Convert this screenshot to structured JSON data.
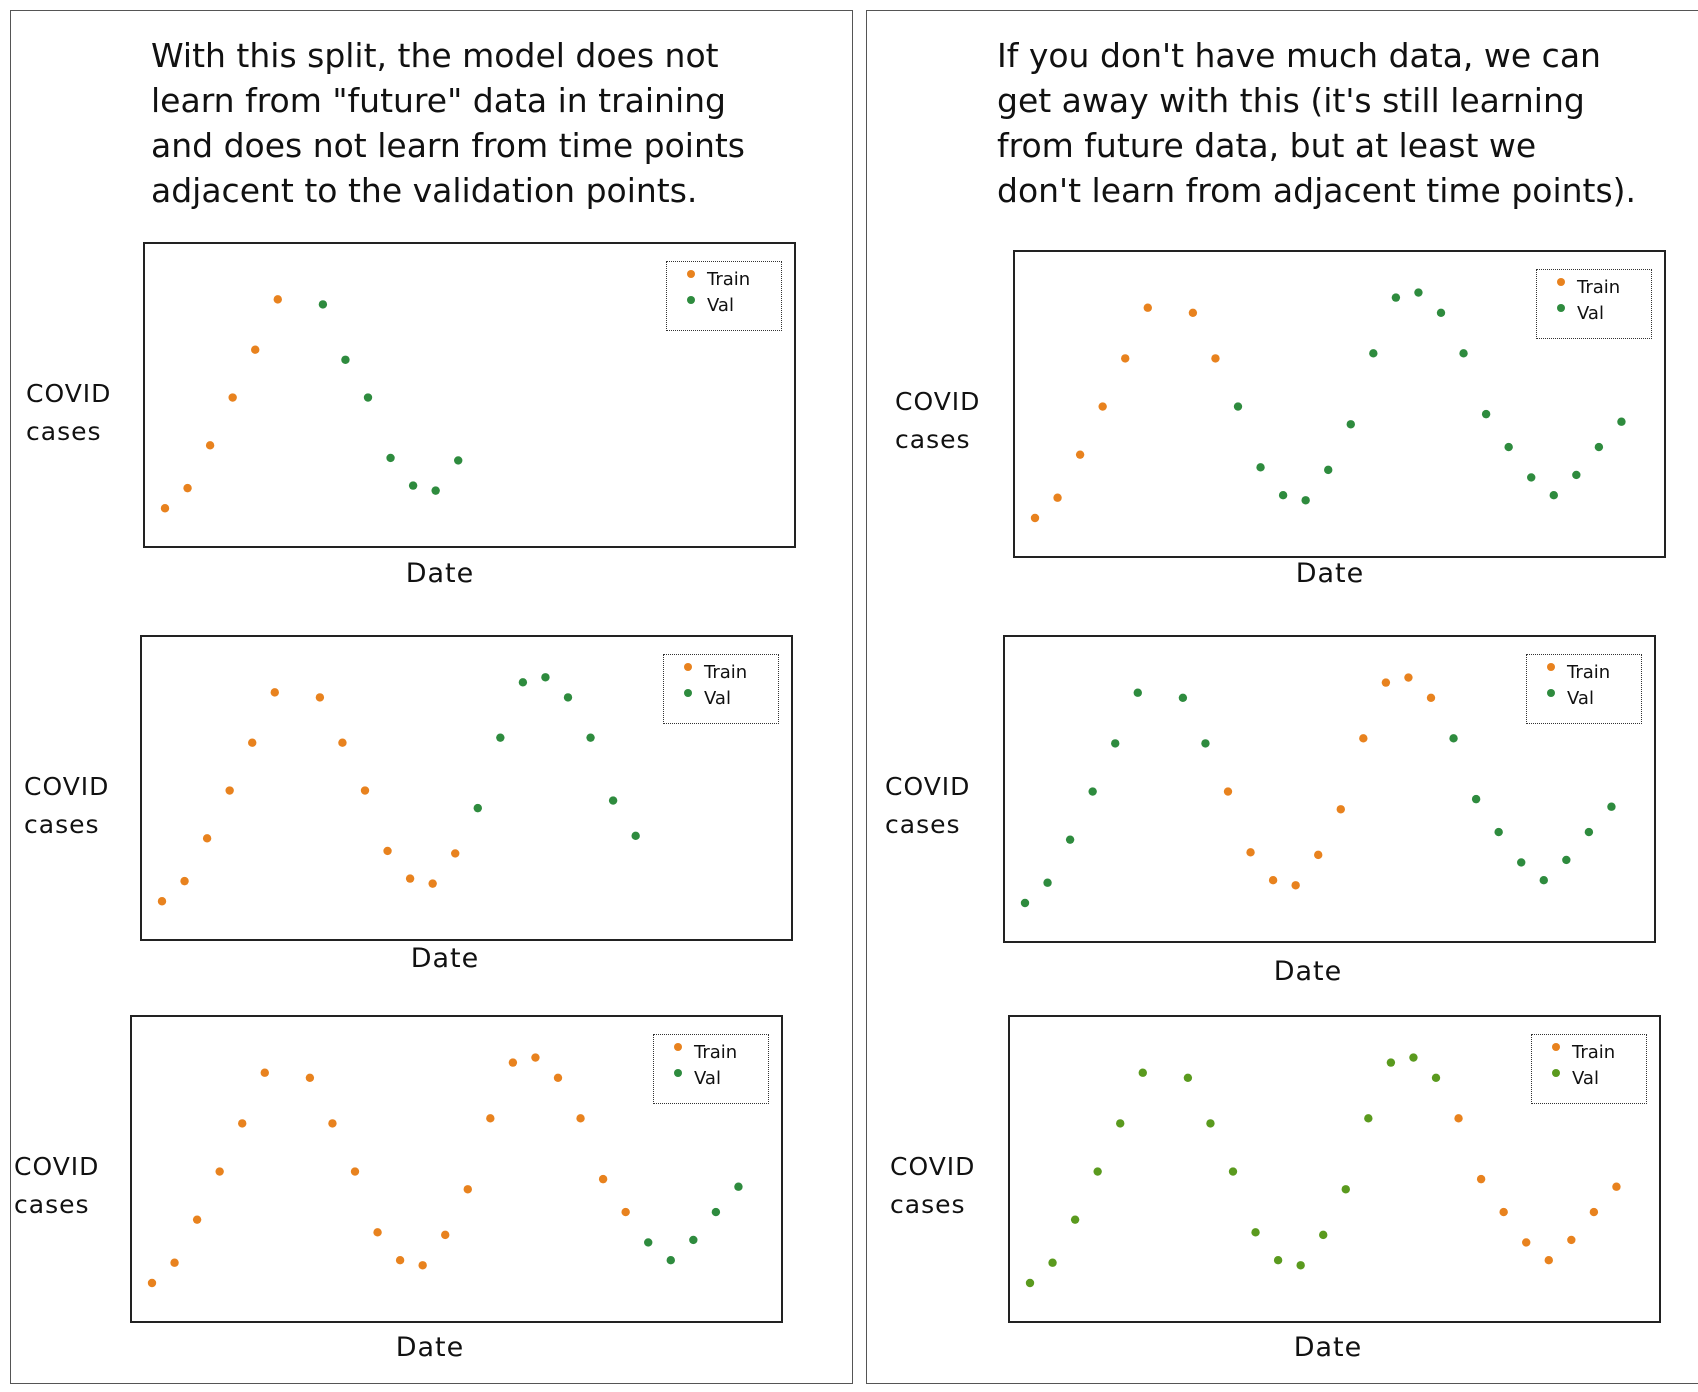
{
  "colors": {
    "train": "#e8821e",
    "val": "#2e8b3e",
    "val_alt": "#5a9a1e"
  },
  "left_panel": {
    "caption": [
      "With this split, the model does not",
      "learn from \"future\" data in training",
      "and does not learn from time points",
      "adjacent to the validation points."
    ]
  },
  "right_panel": {
    "caption": [
      "If you don't have much data, we can",
      "get away with this (it's still learning",
      "from future data, but at least we",
      "don't learn from adjacent time points)."
    ]
  },
  "chart_data": [
    {
      "type": "scatter",
      "panel": "left",
      "position": "top",
      "ylabel": [
        "COVID",
        "cases"
      ],
      "xlabel": "Date",
      "legend": [
        "Train",
        "Val"
      ],
      "legend_placement": "top-right",
      "train": [
        [
          0,
          2.5
        ],
        [
          1,
          3.3
        ],
        [
          2,
          5.0
        ],
        [
          3,
          6.9
        ],
        [
          4,
          8.8
        ],
        [
          5,
          10.8
        ]
      ],
      "val": [
        [
          7,
          10.6
        ],
        [
          8,
          8.4
        ],
        [
          9,
          6.9
        ],
        [
          10,
          4.5
        ],
        [
          11,
          3.4
        ],
        [
          12,
          3.2
        ],
        [
          13,
          4.4
        ]
      ]
    },
    {
      "type": "scatter",
      "panel": "left",
      "position": "middle",
      "ylabel": [
        "COVID",
        "cases"
      ],
      "xlabel": "Date",
      "legend": [
        "Train",
        "Val"
      ],
      "legend_placement": "top-right",
      "train": [
        [
          0,
          2.5
        ],
        [
          1,
          3.3
        ],
        [
          2,
          5.0
        ],
        [
          3,
          6.9
        ],
        [
          4,
          8.8
        ],
        [
          5,
          10.8
        ],
        [
          7,
          10.6
        ],
        [
          8,
          8.8
        ],
        [
          9,
          6.9
        ],
        [
          10,
          4.5
        ],
        [
          11,
          3.4
        ],
        [
          12,
          3.2
        ],
        [
          13,
          4.4
        ]
      ],
      "val": [
        [
          14,
          6.2
        ],
        [
          15,
          9.0
        ],
        [
          16,
          11.2
        ],
        [
          17,
          11.4
        ],
        [
          18,
          10.6
        ],
        [
          19,
          9.0
        ],
        [
          20,
          6.5
        ],
        [
          21,
          5.1
        ]
      ]
    },
    {
      "type": "scatter",
      "panel": "left",
      "position": "bottom",
      "ylabel": [
        "COVID",
        "cases"
      ],
      "xlabel": "Date",
      "legend": [
        "Train",
        "Val"
      ],
      "legend_placement": "top-right",
      "train": [
        [
          0,
          2.5
        ],
        [
          1,
          3.3
        ],
        [
          2,
          5.0
        ],
        [
          3,
          6.9
        ],
        [
          4,
          8.8
        ],
        [
          5,
          10.8
        ],
        [
          7,
          10.6
        ],
        [
          8,
          8.8
        ],
        [
          9,
          6.9
        ],
        [
          10,
          4.5
        ],
        [
          11,
          3.4
        ],
        [
          12,
          3.2
        ],
        [
          13,
          4.4
        ],
        [
          14,
          6.2
        ],
        [
          15,
          9.0
        ],
        [
          16,
          11.2
        ],
        [
          17,
          11.4
        ],
        [
          18,
          10.6
        ],
        [
          19,
          9.0
        ],
        [
          20,
          6.6
        ],
        [
          21,
          5.3
        ]
      ],
      "val": [
        [
          22,
          4.1
        ],
        [
          23,
          3.4
        ],
        [
          24,
          4.2
        ],
        [
          25,
          5.3
        ],
        [
          26,
          6.3
        ]
      ]
    },
    {
      "type": "scatter",
      "panel": "right",
      "position": "top",
      "ylabel": [
        "COVID",
        "cases"
      ],
      "xlabel": "Date",
      "legend": [
        "Train",
        "Val"
      ],
      "legend_placement": "top-right",
      "train": [
        [
          0,
          2.5
        ],
        [
          1,
          3.3
        ],
        [
          2,
          5.0
        ],
        [
          3,
          6.9
        ],
        [
          4,
          8.8
        ],
        [
          5,
          10.8
        ],
        [
          7,
          10.6
        ],
        [
          8,
          8.8
        ]
      ],
      "val": [
        [
          9,
          6.9
        ],
        [
          10,
          4.5
        ],
        [
          11,
          3.4
        ],
        [
          12,
          3.2
        ],
        [
          13,
          4.4
        ],
        [
          14,
          6.2
        ],
        [
          15,
          9.0
        ],
        [
          16,
          11.2
        ],
        [
          17,
          11.4
        ],
        [
          18,
          10.6
        ],
        [
          19,
          9.0
        ],
        [
          20,
          6.6
        ],
        [
          21,
          5.3
        ],
        [
          22,
          4.1
        ],
        [
          23,
          3.4
        ],
        [
          24,
          4.2
        ],
        [
          25,
          5.3
        ],
        [
          26,
          6.3
        ]
      ]
    },
    {
      "type": "scatter",
      "panel": "right",
      "position": "middle",
      "ylabel": [
        "COVID",
        "cases"
      ],
      "xlabel": "Date",
      "legend": [
        "Train",
        "Val"
      ],
      "legend_placement": "top-right",
      "train": [
        [
          9,
          6.9
        ],
        [
          10,
          4.5
        ],
        [
          11,
          3.4
        ],
        [
          12,
          3.2
        ],
        [
          13,
          4.4
        ],
        [
          14,
          6.2
        ],
        [
          15,
          9.0
        ],
        [
          16,
          11.2
        ],
        [
          17,
          11.4
        ],
        [
          18,
          10.6
        ]
      ],
      "val": [
        [
          0,
          2.5
        ],
        [
          1,
          3.3
        ],
        [
          2,
          5.0
        ],
        [
          3,
          6.9
        ],
        [
          4,
          8.8
        ],
        [
          5,
          10.8
        ],
        [
          7,
          10.6
        ],
        [
          8,
          8.8
        ],
        [
          19,
          9.0
        ],
        [
          20,
          6.6
        ],
        [
          21,
          5.3
        ],
        [
          22,
          4.1
        ],
        [
          23,
          3.4
        ],
        [
          24,
          4.2
        ],
        [
          25,
          5.3
        ],
        [
          26,
          6.3
        ]
      ]
    },
    {
      "type": "scatter",
      "panel": "right",
      "position": "bottom",
      "ylabel": [
        "COVID",
        "cases"
      ],
      "xlabel": "Date",
      "legend": [
        "Train",
        "Val"
      ],
      "legend_placement": "top-right",
      "val_color": "#5a9a1e",
      "train": [
        [
          19,
          9.0
        ],
        [
          20,
          6.6
        ],
        [
          21,
          5.3
        ],
        [
          22,
          4.1
        ],
        [
          23,
          3.4
        ],
        [
          24,
          4.2
        ],
        [
          25,
          5.3
        ],
        [
          26,
          6.3
        ]
      ],
      "val": [
        [
          0,
          2.5
        ],
        [
          1,
          3.3
        ],
        [
          2,
          5.0
        ],
        [
          3,
          6.9
        ],
        [
          4,
          8.8
        ],
        [
          5,
          10.8
        ],
        [
          7,
          10.6
        ],
        [
          8,
          8.8
        ],
        [
          9,
          6.9
        ],
        [
          10,
          4.5
        ],
        [
          11,
          3.4
        ],
        [
          12,
          3.2
        ],
        [
          13,
          4.4
        ],
        [
          14,
          6.2
        ],
        [
          15,
          9.0
        ],
        [
          16,
          11.2
        ],
        [
          17,
          11.4
        ],
        [
          18,
          10.6
        ]
      ]
    }
  ]
}
